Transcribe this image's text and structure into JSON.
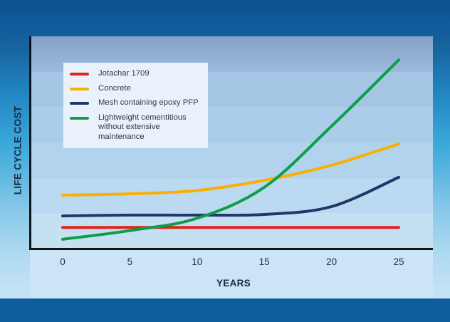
{
  "chart_data": {
    "type": "line",
    "title": "",
    "xlabel": "YEARS",
    "ylabel": "LIFE CYCLE COST",
    "x": [
      0,
      5,
      10,
      15,
      20,
      25
    ],
    "x_ticks": [
      "0",
      "5",
      "10",
      "15",
      "20",
      "25"
    ],
    "xlim": [
      0,
      25
    ],
    "ylim": [
      0,
      100
    ],
    "y_ticks": [],
    "grid": false,
    "legend_position": "top-left",
    "series": [
      {
        "name": "Jotachar 1709",
        "color": "#e2231a",
        "values": [
          10,
          10,
          10,
          10,
          10,
          10
        ]
      },
      {
        "name": "Concrete",
        "color": "#f9b000",
        "values": [
          25.2,
          25.8,
          27.4,
          32.2,
          39.3,
          49.3
        ]
      },
      {
        "name": "Mesh containing epoxy PFP",
        "color": "#1f3868",
        "values": [
          15.4,
          15.8,
          15.8,
          16.1,
          19.8,
          33.6
        ]
      },
      {
        "name": "Lightweight cementitious without extensive maintenance",
        "color": "#0f9d49",
        "values": [
          4.4,
          8.5,
          14.3,
          28.9,
          57.7,
          88.9
        ]
      }
    ],
    "axis_color": "#101418"
  },
  "colors": {
    "background_top": "#0c5190",
    "background_bottom_band": "#0d5c9e",
    "panel_band_top": "#86a1c6",
    "panel_band_bottom": "#cbe4f6",
    "legend_background": "#e9f1fb"
  }
}
